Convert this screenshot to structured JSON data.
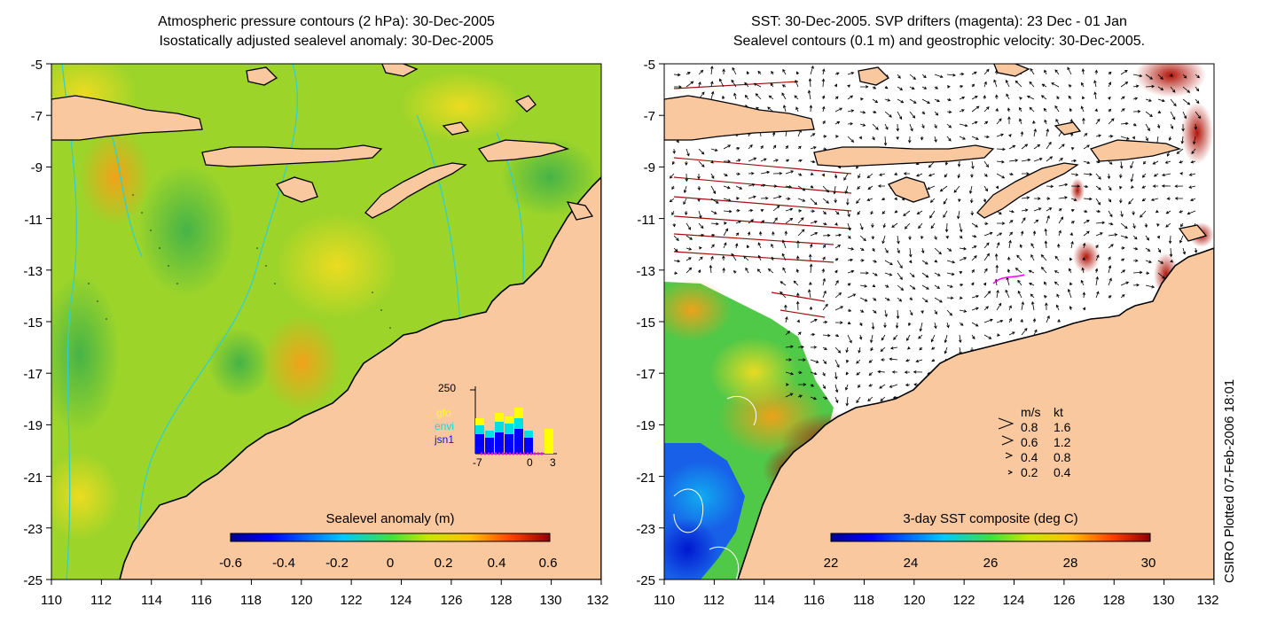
{
  "left_panel": {
    "title_line1": "Atmospheric pressure contours (2 hPa): 30-Dec-2005",
    "title_line2": "Isostatically adjusted sealevel anomaly: 30-Dec-2005",
    "colorbar_label": "Sealevel anomaly (m)",
    "colorbar_ticks": [
      "-0.6",
      "-0.4",
      "-0.2",
      "0",
      "0.2",
      "0.4",
      "0.6"
    ],
    "histogram": {
      "ymax_label": "250",
      "x_tick_labels": [
        "-7",
        "0",
        "3"
      ],
      "legend": [
        {
          "label": "gfo",
          "color": "#ffff00"
        },
        {
          "label": "envi",
          "color": "#00e0e0"
        },
        {
          "label": "jsn1",
          "color": "#0000ff"
        }
      ]
    }
  },
  "right_panel": {
    "title_line1": "SST: 30-Dec-2005. SVP drifters (magenta): 23 Dec - 01 Jan",
    "title_line2": "Sealevel contours (0.1 m) and geostrophic velocity: 30-Dec-2005.",
    "colorbar_label": "3-day SST composite (deg C)",
    "colorbar_ticks": [
      "22",
      "24",
      "26",
      "28",
      "30"
    ],
    "velocity_legend": {
      "header_ms": "m/s",
      "header_kt": "kt",
      "rows": [
        {
          "ms": "0.8",
          "kt": "1.6"
        },
        {
          "ms": "0.6",
          "kt": "1.2"
        },
        {
          "ms": "0.4",
          "kt": "0.8"
        },
        {
          "ms": "0.2",
          "kt": "0.4"
        }
      ]
    }
  },
  "axes": {
    "lat_labels": [
      "-5",
      "-7",
      "-9",
      "-11",
      "-13",
      "-15",
      "-17",
      "-19",
      "-21",
      "-23",
      "-25"
    ],
    "lon_labels": [
      "110",
      "112",
      "114",
      "116",
      "118",
      "120",
      "122",
      "124",
      "126",
      "128",
      "130",
      "132"
    ]
  },
  "credit": "CSIRO Plotted 07-Feb-2006 18:01",
  "colors": {
    "land": "#f9c89e",
    "coast": "#000000",
    "contour_cyan": "#30d0d0",
    "arrow": "#000000",
    "drifter": "#ff00ff",
    "track_red": "#a01010"
  }
}
